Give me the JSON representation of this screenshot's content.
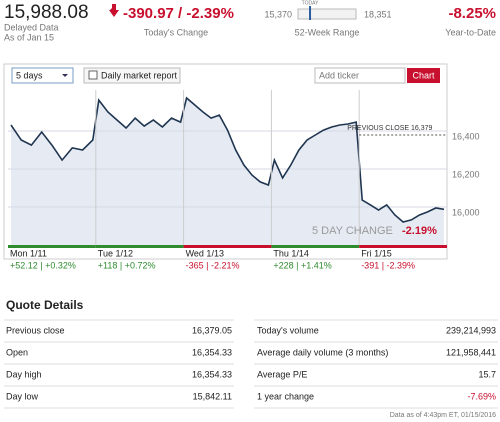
{
  "quote": {
    "price": {
      "value": 15988.08,
      "label": "15,988.08"
    },
    "delayed": "Delayed Data",
    "as_of": "As of Jan 15",
    "change": "-390.97 / -2.39%",
    "change_label": "Today's Change"
  },
  "range": {
    "low": {
      "value": 15370,
      "label": "15,370"
    },
    "high": {
      "value": 18351,
      "label": "18,351"
    },
    "today_label": "TODAY",
    "label": "52-Week Range"
  },
  "ytd": {
    "value": "-8.25%",
    "label": "Year-to-Date"
  },
  "controls": {
    "period": "5 days",
    "report": "Daily market report",
    "ticker": "Add ticker",
    "button": "Chart"
  },
  "chart_data": {
    "type": "line",
    "color": "#1f3550",
    "area_color": "#e6ebf3",
    "ylim": [
      15800,
      16616
    ],
    "yticks": [
      {
        "value": 16000,
        "label": "16,000"
      },
      {
        "value": 16200,
        "label": "16,200"
      },
      {
        "value": 16400,
        "label": "16,400"
      }
    ],
    "grid": true,
    "days": [
      {
        "label": "Mon 1/11",
        "change": "+52.12 | +0.32%",
        "color": "#2e8b2e",
        "values": [
          16432,
          16353,
          16326,
          16395,
          16326,
          16247,
          16311,
          16300,
          16353
        ]
      },
      {
        "label": "Tue 1/12",
        "change": "+118 | +0.72%",
        "color": "#2e8b2e",
        "values": [
          16563,
          16500,
          16458,
          16416,
          16468,
          16426,
          16458,
          16421,
          16468,
          16447
        ]
      },
      {
        "label": "Wed 1/13",
        "change": "-365 | -2.21%",
        "color": "#c8102e",
        "values": [
          16574,
          16537,
          16500,
          16468,
          16484,
          16405,
          16300,
          16221,
          16168,
          16132,
          16116
        ]
      },
      {
        "label": "Thu 1/14",
        "change": "+228 | +1.41%",
        "color": "#2e8b2e",
        "values": [
          16247,
          16153,
          16221,
          16300,
          16353,
          16379,
          16405,
          16421,
          16432,
          16437,
          16447
        ]
      },
      {
        "label": "Fri 1/15",
        "change": "-391 | -2.39%",
        "color": "#c8102e",
        "values": [
          16037,
          16011,
          15984,
          16011,
          15958,
          15921,
          15932,
          15958,
          15974,
          15995,
          15988
        ]
      }
    ],
    "previous_close": {
      "value": 16379,
      "label": "PREVIOUS CLOSE 16,379"
    },
    "five_day_label": "5 DAY CHANGE",
    "five_day_value": "-2.19%"
  },
  "quote_details": {
    "title": "Quote Details",
    "rows": [
      [
        "Previous close",
        "16,379.05",
        "Today's volume",
        "239,214,993"
      ],
      [
        "Open",
        "16,354.33",
        "Average daily volume (3 months)",
        "121,958,441"
      ],
      [
        "Day high",
        "16,354.33",
        "Average P/E",
        "15.7"
      ],
      [
        "Day low",
        "15,842.11",
        "1 year change",
        "-7.69%"
      ]
    ]
  },
  "footer": "Data as of 4:43pm ET, 01/15/2016"
}
